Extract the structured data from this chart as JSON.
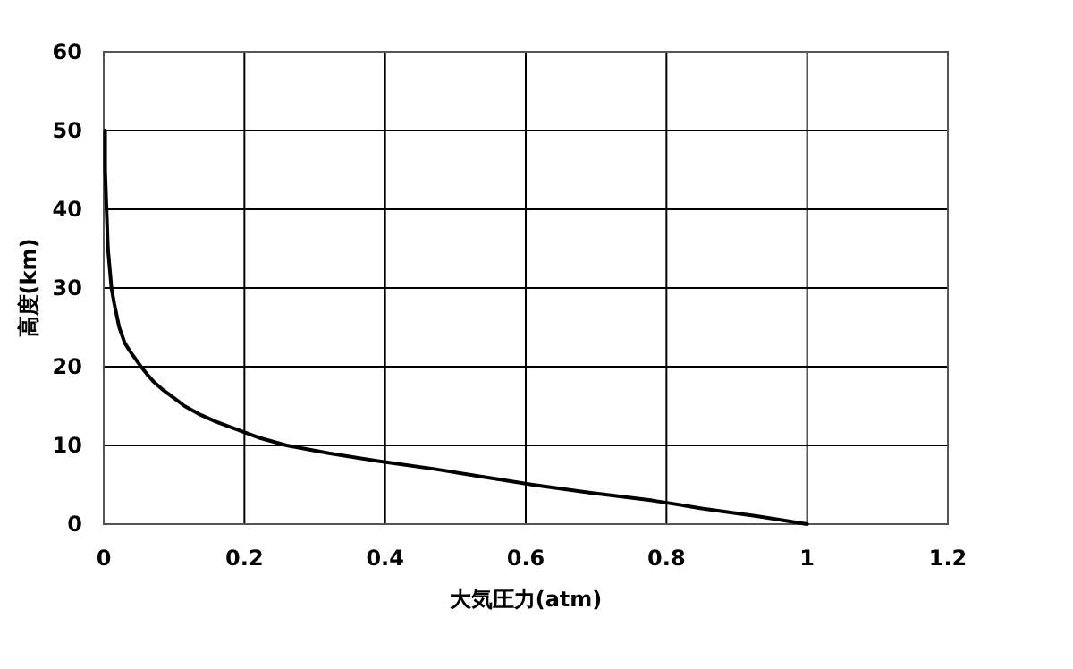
{
  "chart_data": {
    "type": "line",
    "xlabel": "大気圧力(atm)",
    "ylabel": "高度(km)",
    "xlim": [
      0,
      1.2
    ],
    "xticks": [
      0,
      0.2,
      0.4,
      0.6,
      0.8,
      1,
      1.2
    ],
    "ylim": [
      0,
      60
    ],
    "yticks": [
      0,
      10,
      20,
      30,
      40,
      50,
      60
    ],
    "grid": true,
    "marker": "none",
    "line_style": "solid",
    "series": [
      {
        "color": "#000000",
        "x": [
          1,
          0.93,
          0.85,
          0.78,
          0.69,
          0.61,
          0.54,
          0.47,
          0.39,
          0.32,
          0.26,
          0.22,
          0.19,
          0.16,
          0.135,
          0.115,
          0.1,
          0.085,
          0.072,
          0.062,
          0.053,
          0.045,
          0.037,
          0.03,
          0.022,
          0.015,
          0.011,
          0.006,
          0.004,
          0.002,
          0.002
        ],
        "values": [
          0,
          1,
          2,
          3,
          4,
          5,
          6,
          7,
          8,
          9,
          10,
          11,
          12,
          13,
          14,
          15,
          16,
          17,
          18,
          19,
          20,
          21,
          22,
          23,
          25,
          28,
          30,
          35,
          40,
          45,
          50
        ]
      }
    ]
  }
}
